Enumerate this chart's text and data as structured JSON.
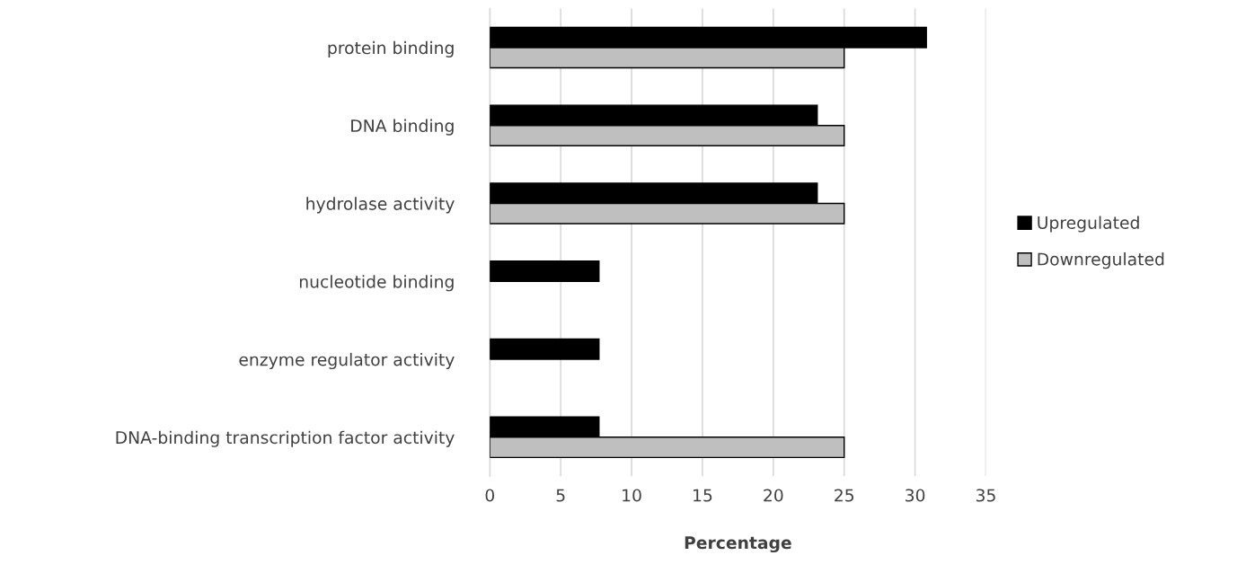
{
  "chart_data": {
    "type": "bar",
    "orientation": "horizontal",
    "xlabel": "Percentage",
    "categories": [
      "protein binding",
      "DNA binding",
      "hydrolase activity",
      "nucleotide binding",
      "enzyme regulator activity",
      "DNA-binding transcription factor activity"
    ],
    "series": [
      {
        "name": "Upregulated",
        "color": "#000000",
        "values": [
          30.8,
          23.1,
          23.1,
          7.7,
          7.7,
          7.7
        ]
      },
      {
        "name": "Downregulated",
        "color": "#bfbfbf",
        "values": [
          25,
          25,
          25,
          null,
          null,
          25
        ]
      }
    ],
    "xlim": [
      0,
      35
    ],
    "xticks": [
      0,
      5,
      10,
      15,
      20,
      25,
      30,
      35
    ],
    "grid": "x",
    "legend": "right"
  }
}
